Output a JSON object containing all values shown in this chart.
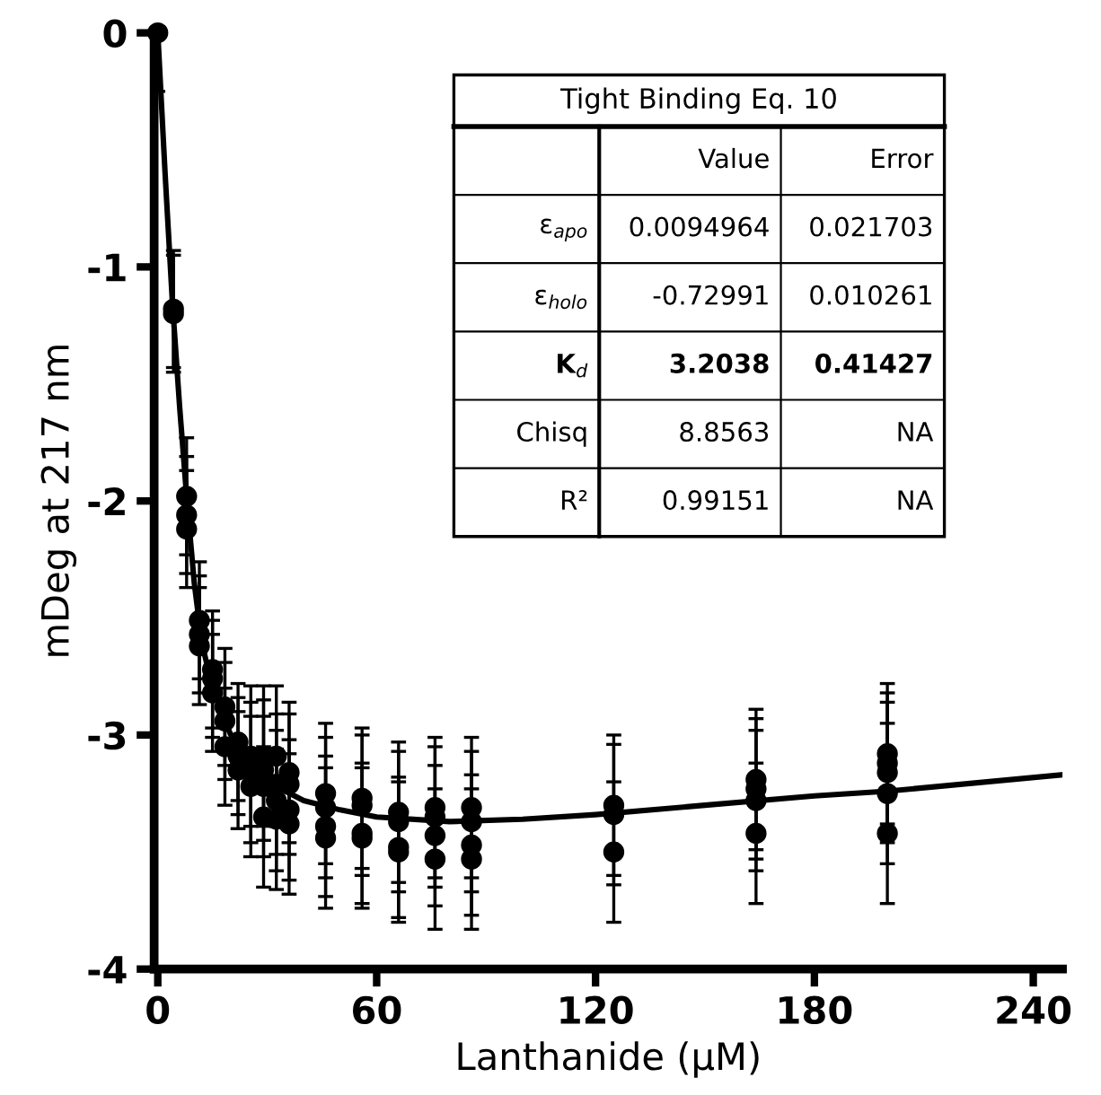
{
  "chart_data": {
    "type": "scatter",
    "xlabel": "Lanthanide (μM)",
    "ylabel": "mDeg at 217 nm",
    "xlim": [
      -1,
      248
    ],
    "ylim": [
      -4,
      0
    ],
    "xticks": [
      0,
      60,
      120,
      180,
      240
    ],
    "yticks": [
      -4,
      -3,
      -2,
      -1,
      0
    ],
    "grid": false,
    "marker": "circle",
    "annotations": [
      "Tight Binding Eq. 10",
      "Value",
      "Error",
      "ε$_{apo}$",
      "0.0094964",
      "0.021703",
      "ε$_{holo}$",
      "-0.72991",
      "0.010261",
      "K$_{d}$",
      "3.2038",
      "0.41427",
      "Chisq",
      "8.8563",
      "NA",
      "R²",
      "0.99151",
      "NA"
    ],
    "series": [
      {
        "color": "#000000",
        "x": [
          0,
          4.3,
          4.3,
          7.9,
          7.9,
          7.9,
          11.4,
          11.4,
          11.4,
          15,
          15,
          15,
          18.4,
          18.4,
          18.4,
          22,
          22,
          22,
          25.5,
          25.5,
          25.5,
          29,
          29,
          29,
          29,
          32.5,
          32.5,
          32.5,
          32.5,
          36,
          36,
          36,
          36,
          46,
          46,
          46,
          46,
          56,
          56,
          56,
          56,
          66,
          66,
          66,
          66,
          76,
          76,
          76,
          76,
          86,
          86,
          86,
          86,
          125,
          125,
          125,
          164,
          164,
          164,
          164,
          200,
          200,
          200,
          200,
          200
        ],
        "values": [
          0,
          -1.18,
          -1.2,
          -1.98,
          -2.06,
          -2.12,
          -2.51,
          -2.57,
          -2.62,
          -2.72,
          -2.76,
          -2.82,
          -2.88,
          -2.94,
          -3.05,
          -3.03,
          -3.09,
          -3.15,
          -3.09,
          -3.16,
          -3.22,
          -3.09,
          -3.15,
          -3.22,
          -3.35,
          -3.09,
          -3.21,
          -3.28,
          -3.36,
          -3.16,
          -3.21,
          -3.32,
          -3.38,
          -3.25,
          -3.31,
          -3.39,
          -3.44,
          -3.27,
          -3.3,
          -3.42,
          -3.44,
          -3.33,
          -3.37,
          -3.48,
          -3.5,
          -3.31,
          -3.35,
          -3.43,
          -3.53,
          -3.31,
          -3.37,
          -3.47,
          -3.53,
          -3.3,
          -3.34,
          -3.5,
          -3.19,
          -3.23,
          -3.28,
          -3.42,
          -3.08,
          -3.12,
          -3.16,
          -3.25,
          -3.42
        ],
        "errors": [
          [
            -0.25,
            0
          ],
          0.25,
          0.25,
          0.25,
          0.25,
          0.25,
          0.25,
          0.25,
          0.25,
          0.25,
          0.25,
          0.25,
          0.25,
          0.25,
          0.25,
          0.25,
          0.25,
          0.25,
          0.3,
          0.3,
          0.3,
          0.3,
          0.3,
          0.3,
          0.3,
          0.3,
          0.3,
          0.3,
          0.3,
          0.3,
          0.3,
          0.3,
          0.3,
          0.3,
          0.3,
          0.3,
          0.3,
          0.3,
          0.3,
          0.3,
          0.3,
          0.3,
          0.3,
          0.3,
          0.3,
          0.3,
          0.3,
          0.3,
          0.3,
          0.3,
          0.3,
          0.3,
          0.3,
          0.3,
          0.3,
          0.3,
          0.3,
          0.3,
          0.3,
          0.3,
          0.3,
          0.3,
          0.3,
          0.3,
          0.3
        ]
      },
      {
        "type": "line",
        "color": "#000000",
        "marker": "none",
        "x": [
          0,
          2,
          4,
          6,
          8,
          10,
          12,
          15,
          20,
          25,
          30,
          40,
          50,
          60,
          80,
          100,
          120,
          150,
          180,
          200,
          248
        ],
        "values": [
          0,
          -0.6,
          -1.15,
          -1.6,
          -2.0,
          -2.35,
          -2.6,
          -2.8,
          -3.0,
          -3.12,
          -3.2,
          -3.28,
          -3.32,
          -3.35,
          -3.37,
          -3.36,
          -3.34,
          -3.3,
          -3.26,
          -3.24,
          -3.17
        ]
      }
    ]
  }
}
